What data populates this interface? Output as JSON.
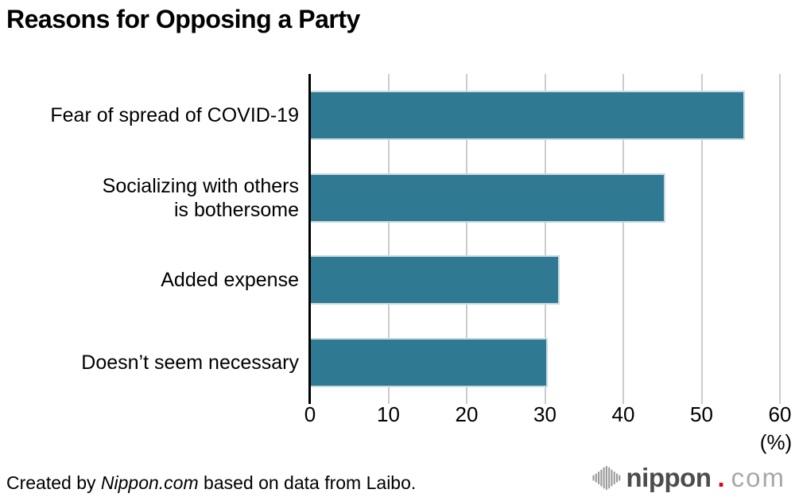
{
  "title": "Reasons for Opposing a Party",
  "chart_data": {
    "type": "bar",
    "orientation": "horizontal",
    "title": "Reasons for Opposing a Party",
    "categories": [
      "Fear of spread of COVID-19",
      "Socializing with others\nis bothersome",
      "Added expense",
      "Doesn’t seem necessary"
    ],
    "values": [
      55.4,
      45.3,
      31.8,
      30.3
    ],
    "unit_label": "(%)",
    "xlabel": "(%)",
    "xlim": [
      0,
      60
    ],
    "xticks": [
      0,
      10,
      20,
      30,
      40,
      50,
      60
    ],
    "grid": true,
    "legend": false,
    "bar_color": "#2f7a92",
    "grid_color": "#cccccc",
    "axis_color": "#000000"
  },
  "footer": {
    "credit": {
      "prefix": "Created by ",
      "brand": "Nippon.com",
      "suffix": " based on data from Laibo."
    },
    "logo": {
      "name": "nippon.com",
      "word": "nippon",
      "dot": ".",
      "tld": "com",
      "dot_color": "#e60012",
      "icon": "waveform-icon",
      "icon_color": "#9b9b9b"
    }
  }
}
